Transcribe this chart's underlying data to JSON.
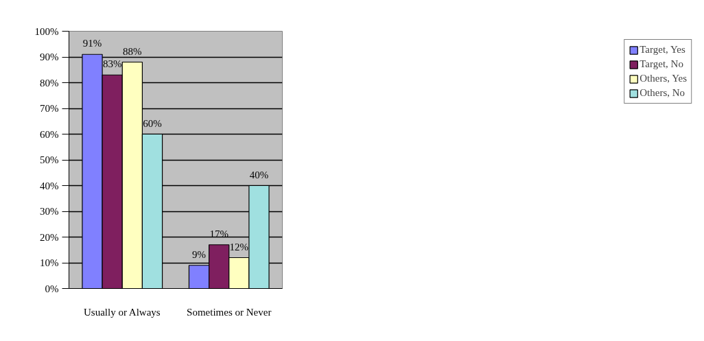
{
  "chart_data": {
    "type": "bar",
    "categories": [
      "Usually or Always",
      "Sometimes or Never"
    ],
    "series": [
      {
        "name": "Target, Yes",
        "color": "#8080ff",
        "values": [
          91,
          9
        ],
        "value_labels": [
          "91%",
          "9%"
        ]
      },
      {
        "name": "Target, No",
        "color": "#7f1f5f",
        "values": [
          83,
          17
        ],
        "value_labels": [
          "83%",
          "17%"
        ]
      },
      {
        "name": "Others, Yes",
        "color": "#ffffc0",
        "values": [
          88,
          12
        ],
        "value_labels": [
          "88%",
          "12%"
        ]
      },
      {
        "name": "Others, No",
        "color": "#a0e0e0",
        "values": [
          60,
          40
        ],
        "value_labels": [
          "60%",
          "40%"
        ]
      }
    ],
    "ylim": [
      0,
      100
    ],
    "yticks": [
      {
        "value": 0,
        "label": "0%"
      },
      {
        "value": 10,
        "label": "10%"
      },
      {
        "value": 20,
        "label": "20%"
      },
      {
        "value": 30,
        "label": "30%"
      },
      {
        "value": 40,
        "label": "40%"
      },
      {
        "value": 50,
        "label": "50%"
      },
      {
        "value": 60,
        "label": "60%"
      },
      {
        "value": 70,
        "label": "70%"
      },
      {
        "value": 80,
        "label": "80%"
      },
      {
        "value": 90,
        "label": "90%"
      },
      {
        "value": 100,
        "label": "100%"
      }
    ],
    "grid": "y",
    "legend": "right"
  }
}
